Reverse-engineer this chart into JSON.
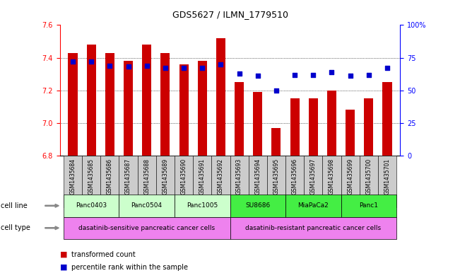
{
  "title": "GDS5627 / ILMN_1779510",
  "samples": [
    "GSM1435684",
    "GSM1435685",
    "GSM1435686",
    "GSM1435687",
    "GSM1435688",
    "GSM1435689",
    "GSM1435690",
    "GSM1435691",
    "GSM1435692",
    "GSM1435693",
    "GSM1435694",
    "GSM1435695",
    "GSM1435696",
    "GSM1435697",
    "GSM1435698",
    "GSM1435699",
    "GSM1435700",
    "GSM1435701"
  ],
  "transformed_count": [
    7.43,
    7.48,
    7.43,
    7.38,
    7.48,
    7.43,
    7.36,
    7.38,
    7.52,
    7.25,
    7.19,
    6.97,
    7.15,
    7.15,
    7.2,
    7.08,
    7.15,
    7.25
  ],
  "percentile_rank": [
    72,
    72,
    69,
    68,
    69,
    67,
    67,
    67,
    70,
    63,
    61,
    50,
    62,
    62,
    64,
    61,
    62,
    67
  ],
  "ylim_left": [
    6.8,
    7.6
  ],
  "ylim_right": [
    0,
    100
  ],
  "yticks_left": [
    6.8,
    7.0,
    7.2,
    7.4,
    7.6
  ],
  "yticks_right": [
    0,
    25,
    50,
    75,
    100
  ],
  "ytick_labels_right": [
    "0",
    "25",
    "50",
    "75",
    "100%"
  ],
  "cell_lines": [
    {
      "label": "Panc0403",
      "start": 0,
      "end": 3,
      "color": "#ccffcc"
    },
    {
      "label": "Panc0504",
      "start": 3,
      "end": 6,
      "color": "#ccffcc"
    },
    {
      "label": "Panc1005",
      "start": 6,
      "end": 9,
      "color": "#ccffcc"
    },
    {
      "label": "SU8686",
      "start": 9,
      "end": 12,
      "color": "#44ee44"
    },
    {
      "label": "MiaPaCa2",
      "start": 12,
      "end": 15,
      "color": "#44ee44"
    },
    {
      "label": "Panc1",
      "start": 15,
      "end": 18,
      "color": "#44ee44"
    }
  ],
  "cell_types": [
    {
      "label": "dasatinib-sensitive pancreatic cancer cells",
      "start": 0,
      "end": 9,
      "color": "#ee82ee"
    },
    {
      "label": "dasatinib-resistant pancreatic cancer cells",
      "start": 9,
      "end": 18,
      "color": "#ee82ee"
    }
  ],
  "bar_color": "#cc0000",
  "dot_color": "#0000cc",
  "bar_width": 0.5,
  "legend_items": [
    "transformed count",
    "percentile rank within the sample"
  ],
  "xtick_bg": "#cccccc"
}
